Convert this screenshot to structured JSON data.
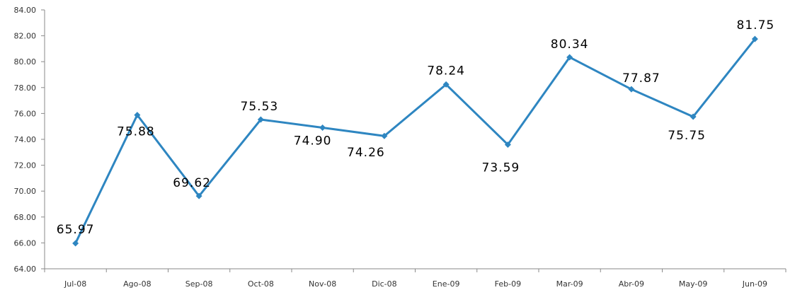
{
  "chart_data": {
    "type": "line",
    "title": "",
    "xlabel": "",
    "ylabel": "",
    "categories": [
      "Jul-08",
      "Ago-08",
      "Sep-08",
      "Oct-08",
      "Nov-08",
      "Dic-08",
      "Ene-09",
      "Feb-09",
      "Mar-09",
      "Abr-09",
      "May-09",
      "Jun-09"
    ],
    "series": [
      {
        "values": [
          65.97,
          75.88,
          69.62,
          75.53,
          74.9,
          74.26,
          78.24,
          73.59,
          80.34,
          77.87,
          75.75,
          81.75
        ],
        "data_labels": [
          "65.97",
          "75.88",
          "69.62",
          "75.53",
          "74.90",
          "74.26",
          "78.24",
          "73.59",
          "80.34",
          "77.87",
          "75.75",
          "81.75"
        ],
        "color": "#2E86C1",
        "marker": "diamond"
      }
    ],
    "ylim": [
      64,
      84
    ],
    "y_ticks": [
      "64.00",
      "66.00",
      "68.00",
      "70.00",
      "72.00",
      "74.00",
      "76.00",
      "78.00",
      "80.00",
      "82.00",
      "84.00"
    ],
    "grid": false,
    "legend": "none"
  }
}
